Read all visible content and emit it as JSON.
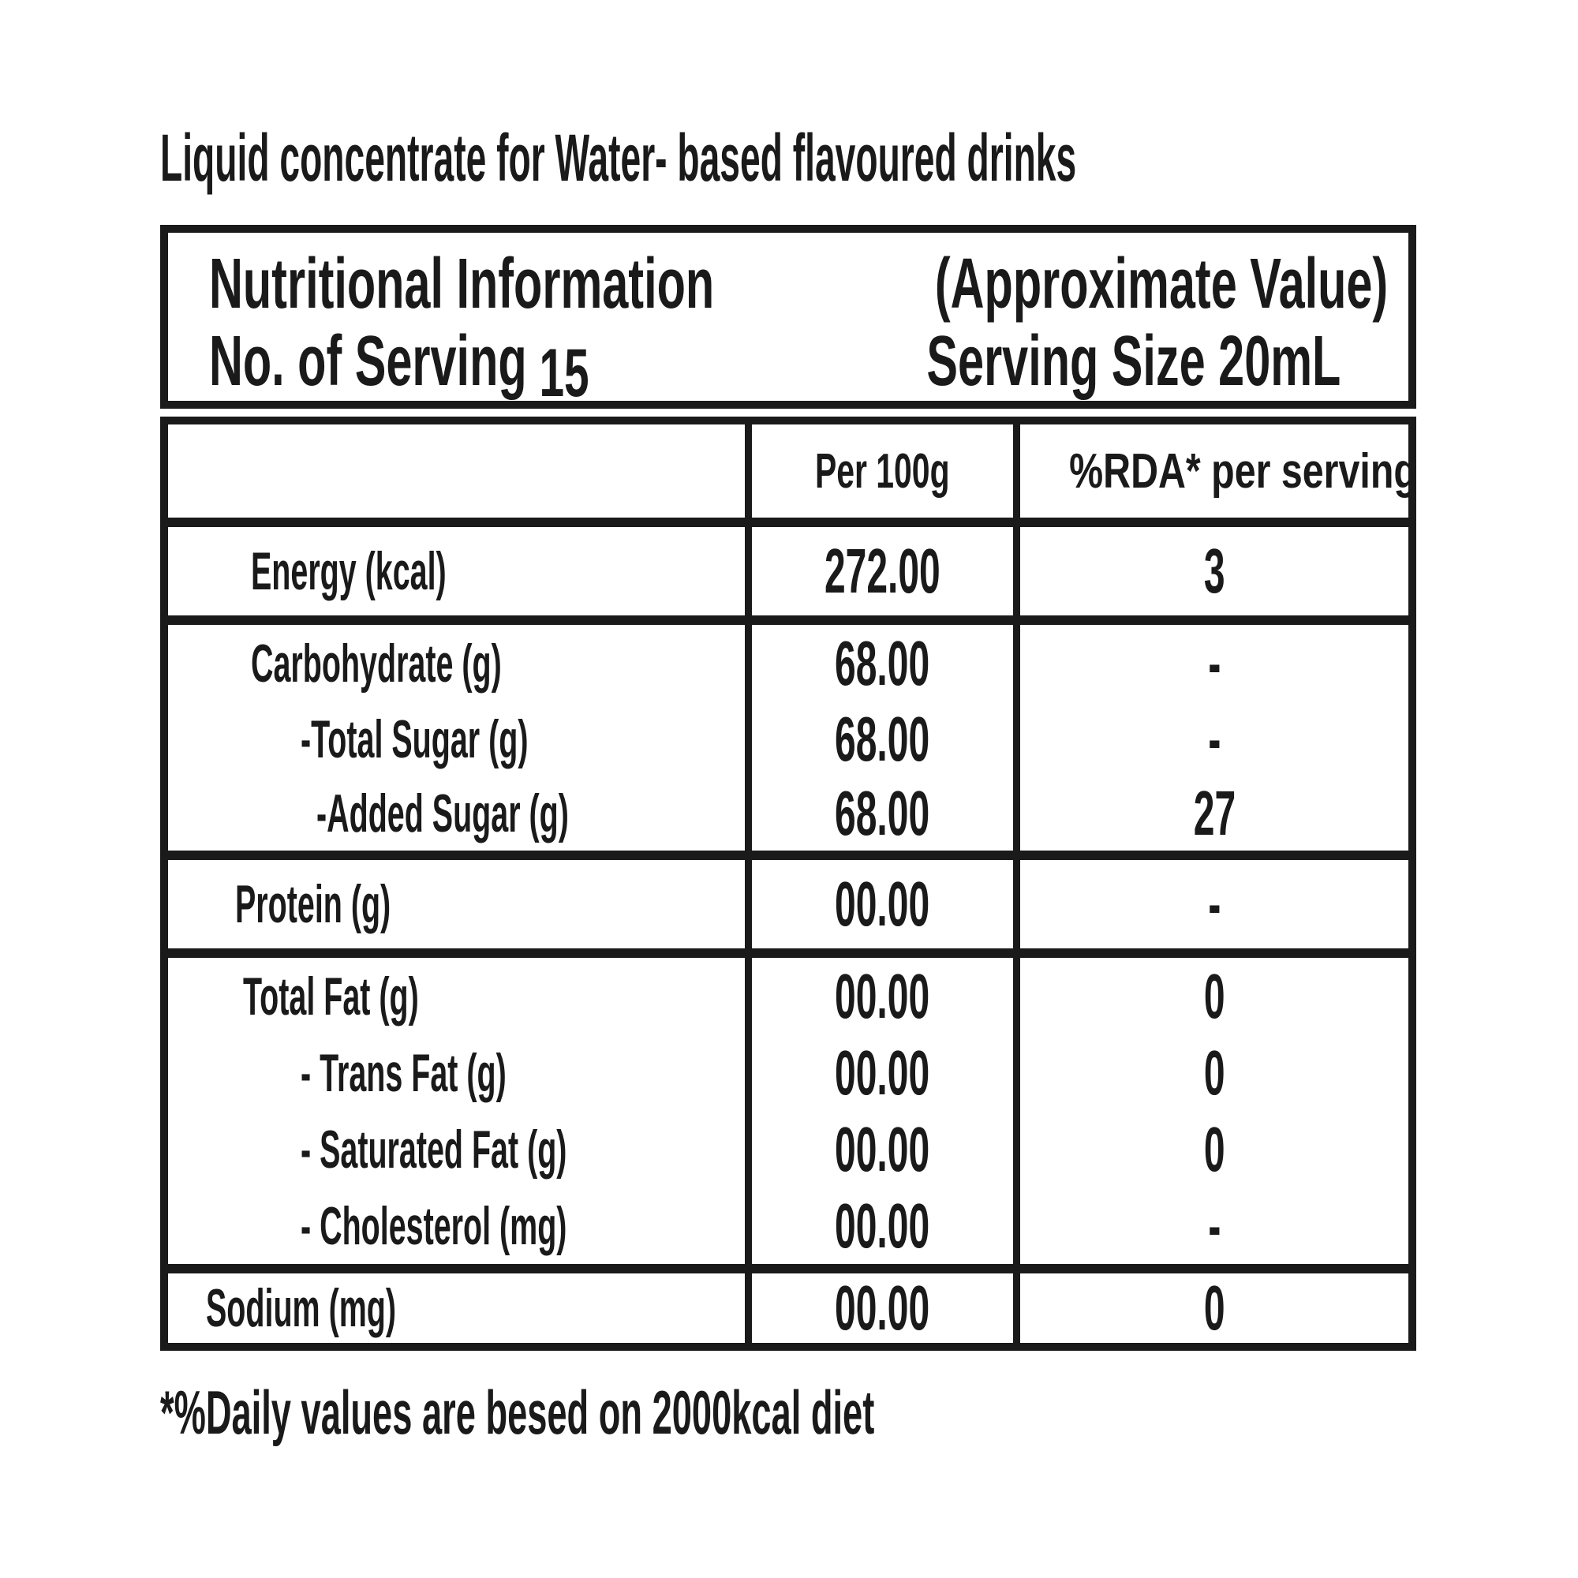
{
  "page": {
    "title": "Liquid concentrate for Water- based flavoured drinks",
    "footnote": "*%Daily values are besed on 2000kcal diet"
  },
  "header": {
    "title": "Nutritional Information",
    "title_note": "(Approximate Value)",
    "servings_label": "No. of Serving",
    "servings_value": "15",
    "serving_size": "Serving Size 20mL"
  },
  "table": {
    "col_headers": {
      "per_100g": "Per 100g",
      "rda": "%RDA* per serving"
    },
    "rows": [
      {
        "label": "Energy (kcal)",
        "per_100g": "272.00",
        "rda": "3"
      },
      {
        "label": "Carbohydrate (g)",
        "per_100g": "68.00",
        "rda": "-"
      },
      {
        "label": "-Total Sugar (g)",
        "per_100g": "68.00",
        "rda": "-"
      },
      {
        "label": "-Added Sugar (g)",
        "per_100g": "68.00",
        "rda": "27"
      },
      {
        "label": "Protein (g)",
        "per_100g": "00.00",
        "rda": "-"
      },
      {
        "label": "Total Fat (g)",
        "per_100g": "00.00",
        "rda": "0"
      },
      {
        "label": "- Trans Fat (g)",
        "per_100g": "00.00",
        "rda": "0"
      },
      {
        "label": "- Saturated Fat (g)",
        "per_100g": "00.00",
        "rda": "0"
      },
      {
        "label": "- Cholesterol (mg)",
        "per_100g": "00.00",
        "rda": "-"
      },
      {
        "label": "Sodium (mg)",
        "per_100g": "00.00",
        "rda": "0"
      }
    ]
  },
  "colors": {
    "ink": "#1a1a1a",
    "background": "#ffffff"
  }
}
